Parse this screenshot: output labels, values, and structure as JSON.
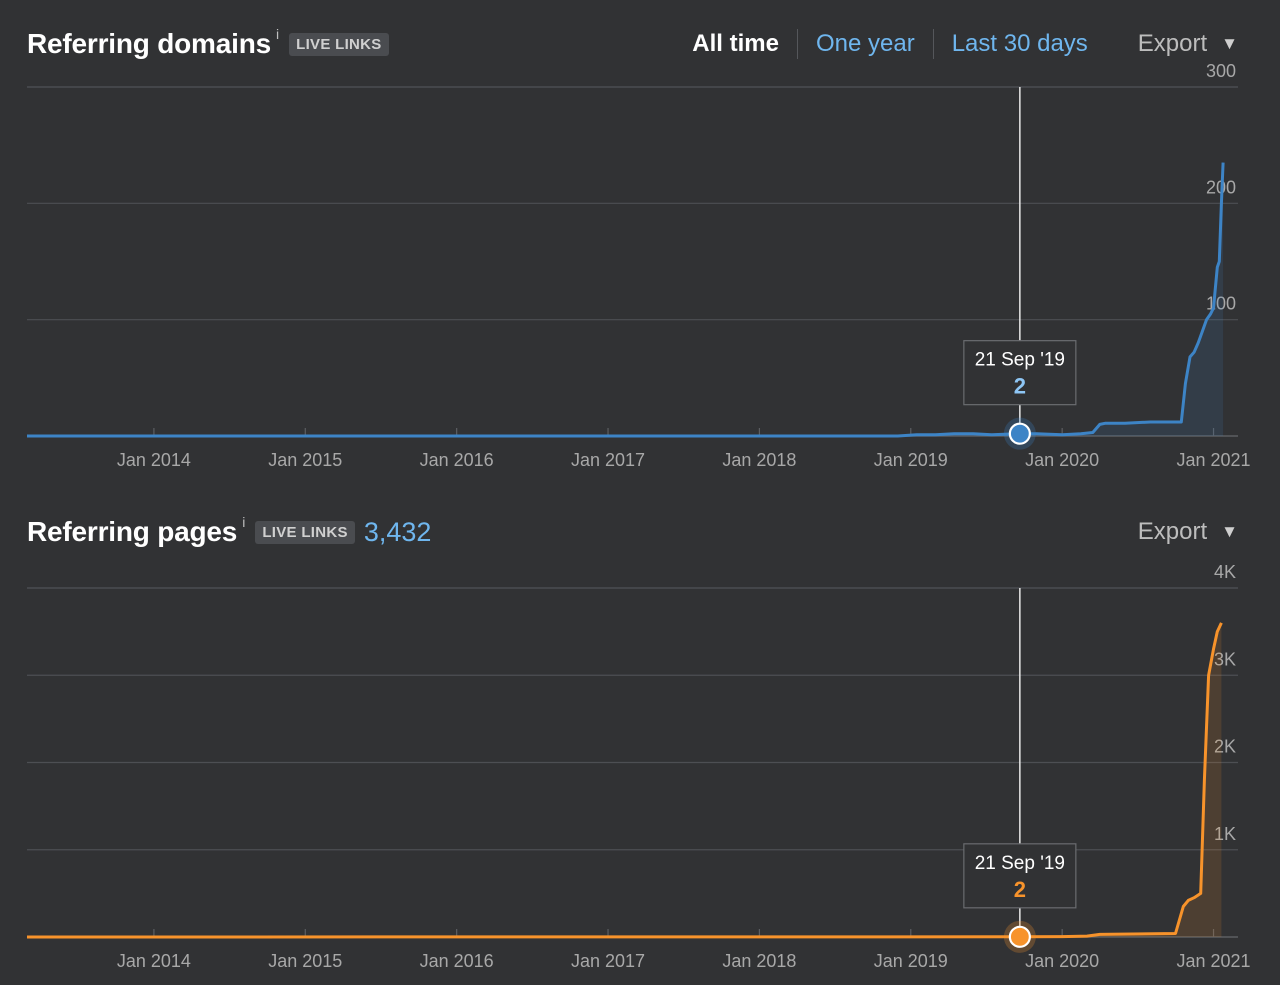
{
  "domains": {
    "title": "Referring domains",
    "info": "i",
    "badge": "LIVE LINKS",
    "range_tabs": [
      {
        "label": "All time",
        "active": true
      },
      {
        "label": "One year",
        "active": false
      },
      {
        "label": "Last 30 days",
        "active": false
      }
    ],
    "export_label": "Export",
    "tooltip": {
      "date": "21 Sep '19",
      "value": "2"
    }
  },
  "pages": {
    "title": "Referring pages",
    "info": "i",
    "badge": "LIVE LINKS",
    "count": "3,432",
    "export_label": "Export",
    "tooltip": {
      "date": "21 Sep '19",
      "value": "2"
    }
  },
  "colors": {
    "domains": "#3d84c6",
    "pages": "#f7932b",
    "background": "#313234"
  },
  "chart_data": [
    {
      "type": "area",
      "title": "Referring domains",
      "x_ticks": [
        "Jan 2014",
        "Jan 2015",
        "Jan 2016",
        "Jan 2017",
        "Jan 2018",
        "Jan 2019",
        "Jan 2020",
        "Jan 2021"
      ],
      "y_ticks": [
        "100",
        "200",
        "300"
      ],
      "ylim": [
        0,
        300
      ],
      "xlim": [
        "2013-03-01",
        "2021-03-01"
      ],
      "grid": true,
      "series": [
        {
          "x": [
            "2013-03-01",
            "2018-12-01",
            "2019-01-15",
            "2019-03-01",
            "2019-04-15",
            "2019-06-01",
            "2019-07-15",
            "2019-09-21",
            "2019-11-01",
            "2020-01-01",
            "2020-02-15",
            "2020-03-15",
            "2020-04-01",
            "2020-04-15",
            "2020-06-01",
            "2020-08-01",
            "2020-10-15",
            "2020-10-25",
            "2020-11-05",
            "2020-11-15",
            "2020-11-25",
            "2020-12-05",
            "2020-12-15",
            "2020-12-25",
            "2021-01-01",
            "2021-01-10",
            "2021-01-15",
            "2021-01-20",
            "2021-01-24"
          ],
          "y": [
            0,
            0,
            1,
            1,
            2,
            2,
            1,
            2,
            2,
            1,
            2,
            3,
            10,
            11,
            11,
            12,
            12,
            45,
            68,
            72,
            80,
            90,
            100,
            105,
            110,
            145,
            150,
            200,
            235
          ]
        }
      ],
      "highlight": {
        "x": "2019-09-21",
        "y": 2,
        "label": "21 Sep '19"
      }
    },
    {
      "type": "area",
      "title": "Referring pages",
      "x_ticks": [
        "Jan 2014",
        "Jan 2015",
        "Jan 2016",
        "Jan 2017",
        "Jan 2018",
        "Jan 2019",
        "Jan 2020",
        "Jan 2021"
      ],
      "y_ticks": [
        "1K",
        "2K",
        "3K",
        "4K"
      ],
      "ylim": [
        0,
        4000
      ],
      "xlim": [
        "2013-03-01",
        "2021-03-01"
      ],
      "grid": true,
      "series": [
        {
          "x": [
            "2013-03-01",
            "2019-09-21",
            "2020-01-01",
            "2020-03-01",
            "2020-04-01",
            "2020-10-01",
            "2020-10-20",
            "2020-11-01",
            "2020-11-15",
            "2020-12-01",
            "2020-12-10",
            "2020-12-20",
            "2021-01-01",
            "2021-01-10",
            "2021-01-20"
          ],
          "y": [
            0,
            2,
            5,
            10,
            30,
            40,
            350,
            420,
            450,
            500,
            1800,
            3000,
            3300,
            3500,
            3600
          ]
        }
      ],
      "highlight": {
        "x": "2019-09-21",
        "y": 2,
        "label": "21 Sep '19"
      }
    }
  ]
}
